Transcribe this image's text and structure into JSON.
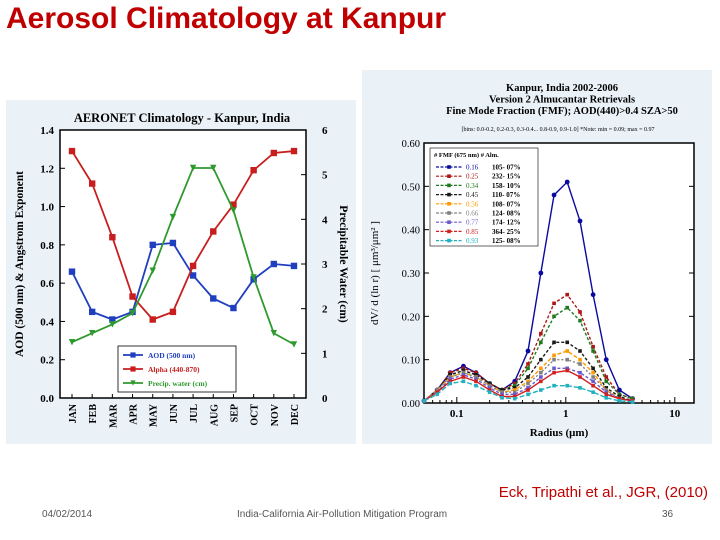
{
  "slide": {
    "title": "Aerosol Climatology at Kanpur",
    "citation": "Eck, Tripathi et al., JGR, (2010)",
    "date": "04/02/2014",
    "footer_text": "India-California Air-Pollution Mitigation Program",
    "page_number": "36"
  },
  "chart_data": [
    {
      "type": "line",
      "title": "AERONET Climatology - Kanpur, India",
      "categories": [
        "JAN",
        "FEB",
        "MAR",
        "APR",
        "MAY",
        "JUN",
        "JUL",
        "AUG",
        "SEP",
        "OCT",
        "NOV",
        "DEC"
      ],
      "ylabel": "AOD (500 nm) & Angstrom Exponent",
      "y2label": "Precipitable Water (cm)",
      "ylim": [
        0,
        1.4
      ],
      "yticks": [
        "0.0",
        "0.2",
        "0.4",
        "0.6",
        "0.8",
        "1.0",
        "1.2",
        "1.4"
      ],
      "y2lim": [
        0,
        6
      ],
      "y2ticks": [
        "0",
        "1",
        "2",
        "3",
        "4",
        "5",
        "6"
      ],
      "series": [
        {
          "name": "AOD (500 nm)",
          "axis": "left",
          "color": "#1f3fbf",
          "marker": "square",
          "values": [
            0.66,
            0.45,
            0.41,
            0.45,
            0.8,
            0.81,
            0.64,
            0.52,
            0.47,
            0.62,
            0.7,
            0.69
          ]
        },
        {
          "name": "Alpha (440-870)",
          "axis": "left",
          "color": "#c81e1e",
          "marker": "square",
          "values": [
            1.29,
            1.12,
            0.84,
            0.53,
            0.41,
            0.45,
            0.69,
            0.87,
            1.01,
            1.19,
            1.28,
            1.29
          ]
        },
        {
          "name": "Precip. water (cm)",
          "axis": "right",
          "color": "#2e9a2e",
          "marker": "triangle",
          "values": [
            1.25,
            1.45,
            1.65,
            1.9,
            2.85,
            4.05,
            5.15,
            5.15,
            4.2,
            2.7,
            1.45,
            1.2
          ]
        }
      ]
    },
    {
      "type": "line",
      "title_lines": [
        "Kanpur, India   2002-2006",
        "Version 2 Almucantar Retrievals",
        "Fine Mode Fraction (FMF); AOD(440)>0.4  SZA>50"
      ],
      "subtitle": "[bins: 0.0-0.2, 0.2-0.3, 0.3-0.4... 0.8-0.9, 0.9-1.0] *Note: min = 0.09; max = 0.97",
      "xlabel": "Radius (μm)",
      "ylabel": "dV/ d (ln r)  [ μm³/μm² ]",
      "xscale": "log",
      "xlim": [
        0.05,
        15
      ],
      "xticks": [
        "0.1",
        "1",
        "10"
      ],
      "ylim": [
        0,
        0.6
      ],
      "yticks": [
        "0.00",
        "0.10",
        "0.20",
        "0.30",
        "0.40",
        "0.50",
        "0.60"
      ],
      "legend_header": "# FMF (675 nm)  # Alm.",
      "series": [
        {
          "name": "0.16",
          "nalm": "105-  07%",
          "color": "#0a0aa0",
          "values": [
            0.005,
            0.03,
            0.07,
            0.085,
            0.07,
            0.045,
            0.03,
            0.05,
            0.12,
            0.3,
            0.48,
            0.51,
            0.42,
            0.25,
            0.1,
            0.03,
            0.01
          ]
        },
        {
          "name": "0.25",
          "nalm": "232-  15%",
          "color": "#b01515",
          "values": [
            0.005,
            0.03,
            0.07,
            0.08,
            0.07,
            0.045,
            0.03,
            0.045,
            0.09,
            0.16,
            0.23,
            0.25,
            0.21,
            0.13,
            0.06,
            0.02,
            0.01
          ]
        },
        {
          "name": "0.34",
          "nalm": "158-  10%",
          "color": "#1f7a1f",
          "values": [
            0.005,
            0.03,
            0.065,
            0.075,
            0.065,
            0.045,
            0.03,
            0.04,
            0.08,
            0.14,
            0.2,
            0.22,
            0.19,
            0.12,
            0.05,
            0.02,
            0.01
          ]
        },
        {
          "name": "0.45",
          "nalm": "110-  07%",
          "color": "#1a1a1a",
          "values": [
            0.005,
            0.03,
            0.065,
            0.075,
            0.065,
            0.045,
            0.03,
            0.035,
            0.06,
            0.1,
            0.14,
            0.14,
            0.12,
            0.08,
            0.035,
            0.015,
            0.005
          ]
        },
        {
          "name": "0.56",
          "nalm": "108-  07%",
          "color": "#ff9900",
          "values": [
            0.005,
            0.03,
            0.06,
            0.07,
            0.06,
            0.04,
            0.025,
            0.03,
            0.05,
            0.08,
            0.11,
            0.12,
            0.1,
            0.07,
            0.03,
            0.01,
            0.005
          ]
        },
        {
          "name": "0.66",
          "nalm": "124-  08%",
          "color": "#808080",
          "values": [
            0.005,
            0.03,
            0.06,
            0.07,
            0.06,
            0.04,
            0.025,
            0.025,
            0.045,
            0.07,
            0.1,
            0.1,
            0.09,
            0.06,
            0.03,
            0.01,
            0.005
          ]
        },
        {
          "name": "0.77",
          "nalm": "174-  12%",
          "color": "#6a5acd",
          "values": [
            0.005,
            0.025,
            0.055,
            0.065,
            0.055,
            0.035,
            0.02,
            0.02,
            0.035,
            0.06,
            0.08,
            0.08,
            0.07,
            0.05,
            0.025,
            0.01,
            0.005
          ]
        },
        {
          "name": "0.85",
          "nalm": "364-  25%",
          "color": "#d02020",
          "values": [
            0.005,
            0.025,
            0.05,
            0.06,
            0.05,
            0.03,
            0.015,
            0.015,
            0.03,
            0.05,
            0.07,
            0.075,
            0.06,
            0.04,
            0.02,
            0.01,
            0.005
          ]
        },
        {
          "name": "0.93",
          "nalm": "125-  08%",
          "color": "#20b0c0",
          "values": [
            0.005,
            0.02,
            0.045,
            0.05,
            0.04,
            0.025,
            0.012,
            0.01,
            0.02,
            0.03,
            0.04,
            0.04,
            0.035,
            0.025,
            0.012,
            0.005,
            0.002
          ]
        }
      ],
      "radius": [
        0.05,
        0.066,
        0.087,
        0.115,
        0.15,
        0.2,
        0.26,
        0.34,
        0.45,
        0.59,
        0.78,
        1.03,
        1.35,
        1.78,
        2.35,
        3.1,
        4.1
      ]
    }
  ]
}
